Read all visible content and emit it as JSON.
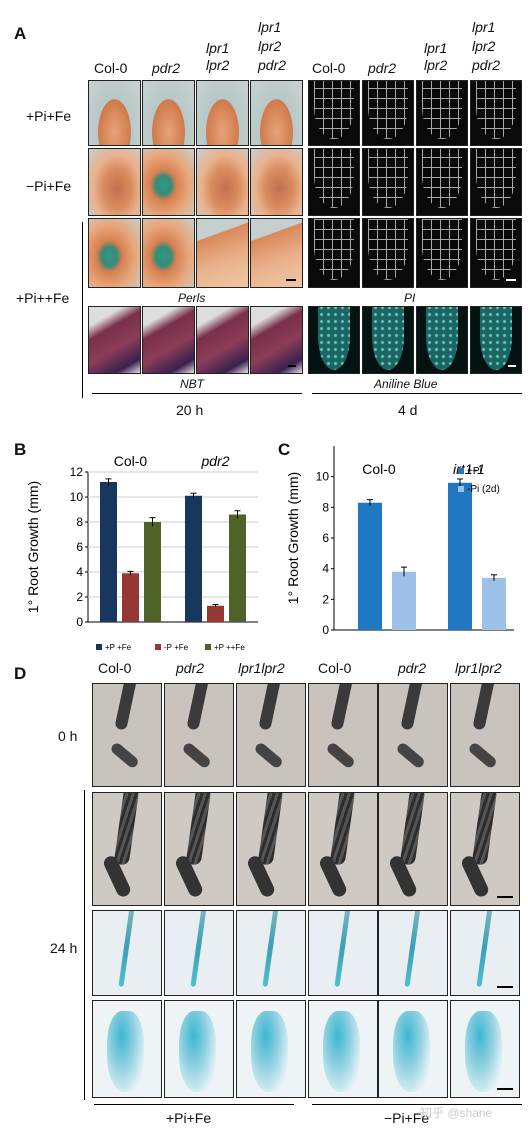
{
  "panelA": {
    "letter": "A",
    "cols_left": [
      "Col-0",
      "pdr2",
      "lpr1\nlpr2",
      "lpr1\nlpr2\npdr2"
    ],
    "cols_right": [
      "Col-0",
      "pdr2",
      "lpr1\nlpr2",
      "lpr1\nlpr2\npdr2"
    ],
    "rows": [
      "+Pi+Fe",
      "−Pi+Fe",
      "+Pi++Fe"
    ],
    "stain_perls": "Perls",
    "stain_pi": "PI",
    "stain_nbt": "NBT",
    "stain_aniline": "Aniline Blue",
    "time_left": "20 h",
    "time_right": "4 d"
  },
  "panelB": {
    "letter": "B",
    "chart_data": {
      "type": "bar",
      "groups": [
        "Col-0",
        "pdr2"
      ],
      "series": [
        {
          "name": "+P +Fe",
          "color": "#17375e",
          "values": [
            11.2,
            10.1
          ],
          "errors": [
            0.25,
            0.2
          ]
        },
        {
          "name": "-P +Fe",
          "color": "#953735",
          "values": [
            3.9,
            1.3
          ],
          "errors": [
            0.15,
            0.1
          ]
        },
        {
          "name": "+P ++Fe",
          "color": "#4f6228",
          "values": [
            8.0,
            8.6
          ],
          "errors": [
            0.35,
            0.3
          ]
        }
      ],
      "ylabel": "1° Root Growth (mm)",
      "ylim": [
        0,
        12
      ],
      "yticks": [
        "0",
        "2",
        "4",
        "6",
        "8",
        "10",
        "12"
      ]
    }
  },
  "panelC": {
    "letter": "C",
    "chart_data": {
      "type": "bar",
      "groups": [
        "Col-0",
        "irt1-1"
      ],
      "series": [
        {
          "name": "+Pi",
          "color": "#1f78c1",
          "values": [
            8.3,
            9.6
          ],
          "errors": [
            0.2,
            0.25
          ]
        },
        {
          "name": "-Pi (2d)",
          "color": "#9cc0e6",
          "values": [
            3.8,
            3.4
          ],
          "errors": [
            0.3,
            0.2
          ]
        }
      ],
      "ylabel": "1° Root Growth (mm)",
      "ylim": [
        0,
        12
      ],
      "yticks": [
        "0",
        "2",
        "4",
        "6",
        "8",
        "10"
      ]
    }
  },
  "panelD": {
    "letter": "D",
    "cols": [
      "Col-0",
      "pdr2",
      "lpr1lpr2",
      "Col-0",
      "pdr2",
      "lpr1lpr2"
    ],
    "row_0h": "0 h",
    "row_24h": "24 h",
    "cond_left": "+Pi+Fe",
    "cond_right": "−Pi+Fe"
  },
  "watermark": "知乎 @shane"
}
